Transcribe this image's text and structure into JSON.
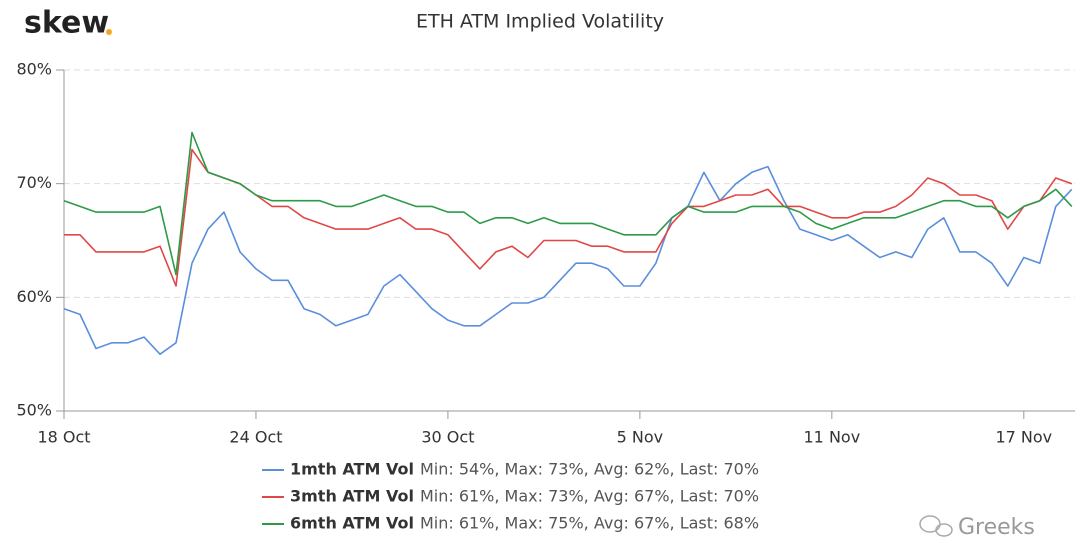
{
  "logo": "skew",
  "watermark": "Greeks",
  "chart_data": {
    "type": "line",
    "title": "ETH ATM Implied Volatility",
    "x": [
      0,
      0.5,
      1,
      1.5,
      2,
      2.5,
      3,
      3.5,
      4,
      4.5,
      5,
      5.5,
      6,
      6.5,
      7,
      7.5,
      8,
      8.5,
      9,
      9.5,
      10,
      10.5,
      11,
      11.5,
      12,
      12.5,
      13,
      13.5,
      14,
      14.5,
      15,
      15.5,
      16,
      16.5,
      17,
      17.5,
      18,
      18.5,
      19,
      19.5,
      20,
      20.5,
      21,
      21.5,
      22,
      22.5,
      23,
      23.5,
      24,
      24.5,
      25,
      25.5,
      26,
      26.5,
      27,
      27.5,
      28,
      28.5,
      29,
      29.5,
      30,
      30.5,
      31,
      31.5
    ],
    "xlim": [
      0,
      31.6
    ],
    "xticks": [
      {
        "value": 0,
        "label": "18 Oct"
      },
      {
        "value": 6,
        "label": "24 Oct"
      },
      {
        "value": 12,
        "label": "30 Oct"
      },
      {
        "value": 18,
        "label": "5 Nov"
      },
      {
        "value": 24,
        "label": "11 Nov"
      },
      {
        "value": 30,
        "label": "17 Nov"
      }
    ],
    "ylim": [
      50,
      80
    ],
    "yticks": [
      {
        "value": 50,
        "label": "50%"
      },
      {
        "value": 60,
        "label": "60%"
      },
      {
        "value": 70,
        "label": "70%"
      },
      {
        "value": 80,
        "label": "80%"
      }
    ],
    "grid": true,
    "series": [
      {
        "name": "1mth ATM Vol",
        "stats": "Min: 54%, Max: 73%, Avg: 62%, Last: 70%",
        "color": "#5b8fdc",
        "values": [
          59,
          58.5,
          55.5,
          56,
          56,
          56.5,
          55,
          56,
          63,
          66,
          67.5,
          64,
          62.5,
          61.5,
          61.5,
          59,
          58.5,
          57.5,
          58,
          58.5,
          61,
          62,
          60.5,
          59,
          58,
          57.5,
          57.5,
          58.5,
          59.5,
          59.5,
          60,
          61.5,
          63,
          63,
          62.5,
          61,
          61,
          63,
          67,
          68,
          71,
          68.5,
          70,
          71,
          71.5,
          68.5,
          66,
          65.5,
          65,
          65.5,
          64.5,
          63.5,
          64,
          63.5,
          66,
          67,
          64,
          64,
          63,
          61,
          63.5,
          63,
          68,
          69.5
        ]
      },
      {
        "name": "3mth ATM Vol",
        "stats": "Min: 61%, Max: 73%, Avg: 67%, Last: 70%",
        "color": "#e04848",
        "values": [
          65.5,
          65.5,
          64,
          64,
          64,
          64,
          64.5,
          61,
          73,
          71,
          70.5,
          70,
          69,
          68,
          68,
          67,
          66.5,
          66,
          66,
          66,
          66.5,
          67,
          66,
          66,
          65.5,
          64,
          62.5,
          64,
          64.5,
          63.5,
          65,
          65,
          65,
          64.5,
          64.5,
          64,
          64,
          64,
          66.5,
          68,
          68,
          68.5,
          69,
          69,
          69.5,
          68,
          68,
          67.5,
          67,
          67,
          67.5,
          67.5,
          68,
          69,
          70.5,
          70,
          69,
          69,
          68.5,
          66,
          68,
          68.5,
          70.5,
          70
        ]
      },
      {
        "name": "6mth ATM Vol",
        "stats": "Min: 61%, Max: 75%, Avg: 67%, Last: 68%",
        "color": "#2e9a48",
        "values": [
          68.5,
          68,
          67.5,
          67.5,
          67.5,
          67.5,
          68,
          62,
          74.5,
          71,
          70.5,
          70,
          69,
          68.5,
          68.5,
          68.5,
          68.5,
          68,
          68,
          68.5,
          69,
          68.5,
          68,
          68,
          67.5,
          67.5,
          66.5,
          67,
          67,
          66.5,
          67,
          66.5,
          66.5,
          66.5,
          66,
          65.5,
          65.5,
          65.5,
          67,
          68,
          67.5,
          67.5,
          67.5,
          68,
          68,
          68,
          67.5,
          66.5,
          66,
          66.5,
          67,
          67,
          67,
          67.5,
          68,
          68.5,
          68.5,
          68,
          68,
          67,
          68,
          68.5,
          69.5,
          68
        ]
      }
    ]
  }
}
